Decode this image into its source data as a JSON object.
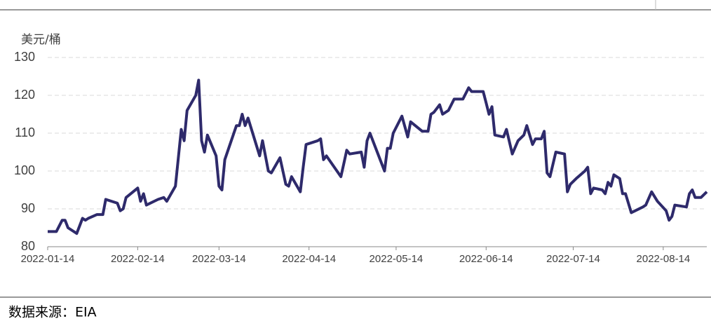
{
  "chart_data": {
    "type": "line",
    "y_label": "美元/桶",
    "source": "数据来源：EIA",
    "xlim": [
      "2022-01-14",
      "2022-08-29"
    ],
    "xticks": [
      "2022-01-14",
      "2022-02-14",
      "2022-03-14",
      "2022-04-14",
      "2022-05-14",
      "2022-06-14",
      "2022-07-14",
      "2022-08-14"
    ],
    "ylim": [
      80,
      130
    ],
    "yticks": [
      80,
      90,
      100,
      110,
      120,
      130
    ],
    "grid": true,
    "x": [
      "2022-01-14",
      "2022-01-17",
      "2022-01-19",
      "2022-01-20",
      "2022-01-21",
      "2022-01-24",
      "2022-01-26",
      "2022-01-27",
      "2022-01-28",
      "2022-01-31",
      "2022-02-02",
      "2022-02-03",
      "2022-02-07",
      "2022-02-08",
      "2022-02-09",
      "2022-02-10",
      "2022-02-14",
      "2022-02-15",
      "2022-02-16",
      "2022-02-17",
      "2022-02-21",
      "2022-02-23",
      "2022-02-24",
      "2022-02-27",
      "2022-03-01",
      "2022-03-02",
      "2022-03-03",
      "2022-03-06",
      "2022-03-07",
      "2022-03-08",
      "2022-03-09",
      "2022-03-10",
      "2022-03-13",
      "2022-03-14",
      "2022-03-15",
      "2022-03-16",
      "2022-03-20",
      "2022-03-21",
      "2022-03-22",
      "2022-03-23",
      "2022-03-24",
      "2022-03-28",
      "2022-03-29",
      "2022-03-31",
      "2022-04-01",
      "2022-04-04",
      "2022-04-06",
      "2022-04-07",
      "2022-04-08",
      "2022-04-11",
      "2022-04-12",
      "2022-04-13",
      "2022-04-17",
      "2022-04-18",
      "2022-04-19",
      "2022-04-20",
      "2022-04-25",
      "2022-04-26",
      "2022-04-27",
      "2022-04-28",
      "2022-05-02",
      "2022-05-03",
      "2022-05-04",
      "2022-05-05",
      "2022-05-10",
      "2022-05-11",
      "2022-05-12",
      "2022-05-13",
      "2022-05-16",
      "2022-05-18",
      "2022-05-19",
      "2022-05-23",
      "2022-05-25",
      "2022-05-26",
      "2022-05-27",
      "2022-05-29",
      "2022-05-30",
      "2022-06-01",
      "2022-06-03",
      "2022-06-06",
      "2022-06-08",
      "2022-06-09",
      "2022-06-11",
      "2022-06-13",
      "2022-06-14",
      "2022-06-15",
      "2022-06-16",
      "2022-06-17",
      "2022-06-20",
      "2022-06-21",
      "2022-06-23",
      "2022-06-25",
      "2022-06-27",
      "2022-06-28",
      "2022-06-30",
      "2022-07-01",
      "2022-07-03",
      "2022-07-04",
      "2022-07-05",
      "2022-07-06",
      "2022-07-08",
      "2022-07-11",
      "2022-07-12",
      "2022-07-13",
      "2022-07-15",
      "2022-07-18",
      "2022-07-19",
      "2022-07-20",
      "2022-07-21",
      "2022-07-24",
      "2022-07-25",
      "2022-07-26",
      "2022-07-27",
      "2022-07-28",
      "2022-07-30",
      "2022-07-31",
      "2022-08-01",
      "2022-08-03",
      "2022-08-07",
      "2022-08-08",
      "2022-08-10",
      "2022-08-12",
      "2022-08-15",
      "2022-08-16",
      "2022-08-17",
      "2022-08-18",
      "2022-08-22",
      "2022-08-23",
      "2022-08-24",
      "2022-08-25",
      "2022-08-27",
      "2022-08-29"
    ],
    "series": [
      {
        "color": "#2e2a6b",
        "values": [
          84,
          84,
          87,
          87,
          85,
          83.5,
          87.5,
          87,
          87.5,
          88.5,
          88.5,
          92.5,
          91.5,
          89.5,
          90,
          93,
          95.5,
          92,
          94,
          91,
          92.5,
          93,
          92,
          96,
          111,
          108,
          116,
          120,
          124,
          108,
          105,
          109.5,
          104,
          96,
          95,
          103,
          112,
          112,
          115,
          112,
          114,
          104,
          108,
          100,
          99.5,
          103.5,
          96.5,
          96,
          98.5,
          94.5,
          101,
          107,
          108,
          108.5,
          103,
          104,
          98.5,
          102,
          105.5,
          104.5,
          105,
          101,
          108,
          110,
          100,
          106,
          106,
          110,
          114.5,
          109,
          113,
          110.5,
          110.5,
          115,
          115.5,
          117.5,
          115,
          116,
          119,
          119,
          122,
          121,
          121,
          121,
          118,
          115,
          117,
          109.5,
          109,
          111,
          104.5,
          108,
          109.5,
          112,
          107,
          108.5,
          108.5,
          110.5,
          99.5,
          98.5,
          105,
          104.5,
          94.5,
          96.5,
          98,
          100,
          101,
          94,
          95.5,
          95,
          94,
          97,
          96,
          99,
          98,
          94,
          94,
          89,
          90.5,
          91,
          94.5,
          92,
          89.5,
          87,
          88,
          91,
          90.5,
          94,
          95,
          93,
          93,
          94.5
        ]
      }
    ]
  }
}
